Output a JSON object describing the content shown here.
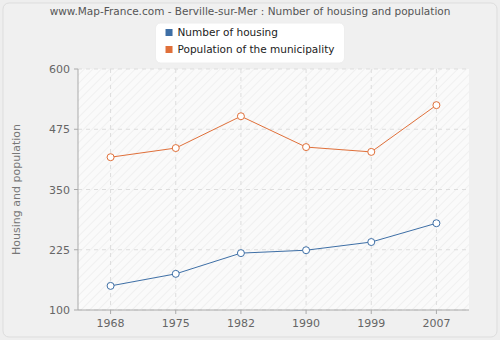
{
  "chart_data": {
    "type": "line",
    "title": "www.Map-France.com - Berville-sur-Mer : Number of housing and population",
    "y_label": "Housing and population",
    "categories": [
      "1968",
      "1975",
      "1982",
      "1990",
      "1999",
      "2007"
    ],
    "series": [
      {
        "name": "Number of housing",
        "color": "#3e6fa6",
        "marker": "circle",
        "values": [
          150,
          175,
          218,
          224,
          241,
          280
        ]
      },
      {
        "name": "Population of the municipality",
        "color": "#e0703a",
        "marker": "circle",
        "values": [
          417,
          436,
          502,
          438,
          428,
          525
        ]
      }
    ],
    "ylim": [
      100,
      600
    ],
    "yticks": [
      100,
      225,
      350,
      475,
      600
    ],
    "grid": true,
    "legend": "top"
  }
}
